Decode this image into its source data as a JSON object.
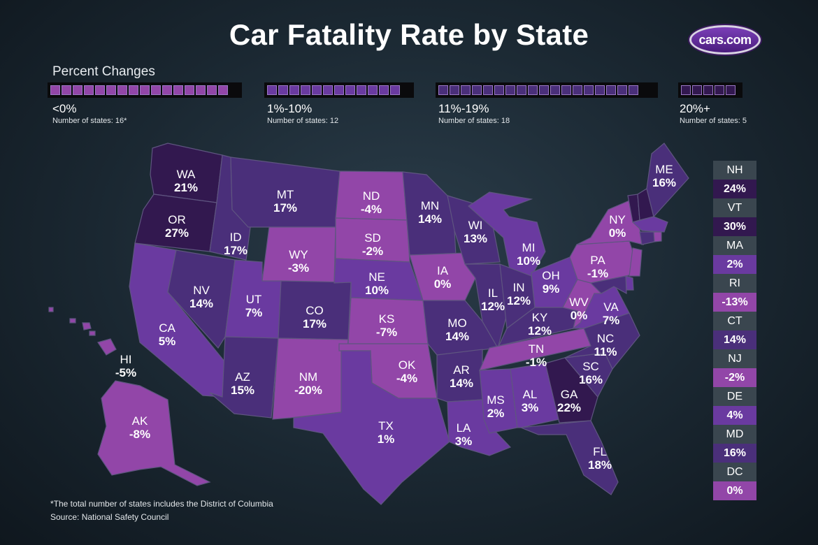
{
  "title": "Car Fatality Rate by State",
  "logo_text": "cars.com",
  "legend": {
    "heading": "Percent Changes",
    "groups": [
      {
        "label": "<0%",
        "count": "Number of states: 16*",
        "color": "#9246a8",
        "squares": 16
      },
      {
        "label": "1%-10%",
        "count": "Number of states: 12",
        "color": "#6a3aa0",
        "squares": 12
      },
      {
        "label": "11%-19%",
        "count": "Number of states: 18",
        "color": "#4a2f7a",
        "squares": 18
      },
      {
        "label": "20%+",
        "count": "Number of states: 5",
        "color": "#32184f",
        "squares": 5
      }
    ]
  },
  "colors": {
    "neg": "#9246a8",
    "low": "#6a3aa0",
    "mid": "#4a2f7a",
    "high": "#32184f",
    "side_name_bg": "#3a464f"
  },
  "states": [
    {
      "abbr": "WA",
      "value": "21%",
      "bin": "high"
    },
    {
      "abbr": "OR",
      "value": "27%",
      "bin": "high"
    },
    {
      "abbr": "CA",
      "value": "5%",
      "bin": "low"
    },
    {
      "abbr": "ID",
      "value": "17%",
      "bin": "mid"
    },
    {
      "abbr": "NV",
      "value": "14%",
      "bin": "mid"
    },
    {
      "abbr": "MT",
      "value": "17%",
      "bin": "mid"
    },
    {
      "abbr": "WY",
      "value": "-3%",
      "bin": "neg"
    },
    {
      "abbr": "UT",
      "value": "7%",
      "bin": "low"
    },
    {
      "abbr": "AZ",
      "value": "15%",
      "bin": "mid"
    },
    {
      "abbr": "CO",
      "value": "17%",
      "bin": "mid"
    },
    {
      "abbr": "NM",
      "value": "-20%",
      "bin": "neg"
    },
    {
      "abbr": "ND",
      "value": "-4%",
      "bin": "neg"
    },
    {
      "abbr": "SD",
      "value": "-2%",
      "bin": "neg"
    },
    {
      "abbr": "NE",
      "value": "10%",
      "bin": "low"
    },
    {
      "abbr": "KS",
      "value": "-7%",
      "bin": "neg"
    },
    {
      "abbr": "OK",
      "value": "-4%",
      "bin": "neg"
    },
    {
      "abbr": "TX",
      "value": "1%",
      "bin": "low"
    },
    {
      "abbr": "MN",
      "value": "14%",
      "bin": "mid"
    },
    {
      "abbr": "IA",
      "value": "0%",
      "bin": "neg"
    },
    {
      "abbr": "MO",
      "value": "14%",
      "bin": "mid"
    },
    {
      "abbr": "AR",
      "value": "14%",
      "bin": "mid"
    },
    {
      "abbr": "LA",
      "value": "3%",
      "bin": "low"
    },
    {
      "abbr": "WI",
      "value": "13%",
      "bin": "mid"
    },
    {
      "abbr": "IL",
      "value": "12%",
      "bin": "mid"
    },
    {
      "abbr": "MI",
      "value": "10%",
      "bin": "low"
    },
    {
      "abbr": "IN",
      "value": "12%",
      "bin": "mid"
    },
    {
      "abbr": "OH",
      "value": "9%",
      "bin": "low"
    },
    {
      "abbr": "KY",
      "value": "12%",
      "bin": "mid"
    },
    {
      "abbr": "TN",
      "value": "-1%",
      "bin": "neg"
    },
    {
      "abbr": "MS",
      "value": "2%",
      "bin": "low"
    },
    {
      "abbr": "AL",
      "value": "3%",
      "bin": "low"
    },
    {
      "abbr": "GA",
      "value": "22%",
      "bin": "high"
    },
    {
      "abbr": "FL",
      "value": "18%",
      "bin": "mid"
    },
    {
      "abbr": "SC",
      "value": "16%",
      "bin": "mid"
    },
    {
      "abbr": "NC",
      "value": "11%",
      "bin": "mid"
    },
    {
      "abbr": "VA",
      "value": "7%",
      "bin": "low"
    },
    {
      "abbr": "WV",
      "value": "0%",
      "bin": "neg"
    },
    {
      "abbr": "PA",
      "value": "-1%",
      "bin": "neg"
    },
    {
      "abbr": "NY",
      "value": "0%",
      "bin": "neg"
    },
    {
      "abbr": "ME",
      "value": "16%",
      "bin": "mid"
    },
    {
      "abbr": "AK",
      "value": "-8%",
      "bin": "neg"
    },
    {
      "abbr": "HI",
      "value": "-5%",
      "bin": "neg"
    }
  ],
  "side_states": [
    {
      "abbr": "NH",
      "value": "24%",
      "bin": "high"
    },
    {
      "abbr": "VT",
      "value": "30%",
      "bin": "high"
    },
    {
      "abbr": "MA",
      "value": "2%",
      "bin": "low"
    },
    {
      "abbr": "RI",
      "value": "-13%",
      "bin": "neg"
    },
    {
      "abbr": "CT",
      "value": "14%",
      "bin": "mid"
    },
    {
      "abbr": "NJ",
      "value": "-2%",
      "bin": "neg"
    },
    {
      "abbr": "DE",
      "value": "4%",
      "bin": "low"
    },
    {
      "abbr": "MD",
      "value": "16%",
      "bin": "mid"
    },
    {
      "abbr": "DC",
      "value": "0%",
      "bin": "neg"
    }
  ],
  "footnote": "*The total number of states includes the District of Columbia",
  "source": "Source: National Safety Council"
}
